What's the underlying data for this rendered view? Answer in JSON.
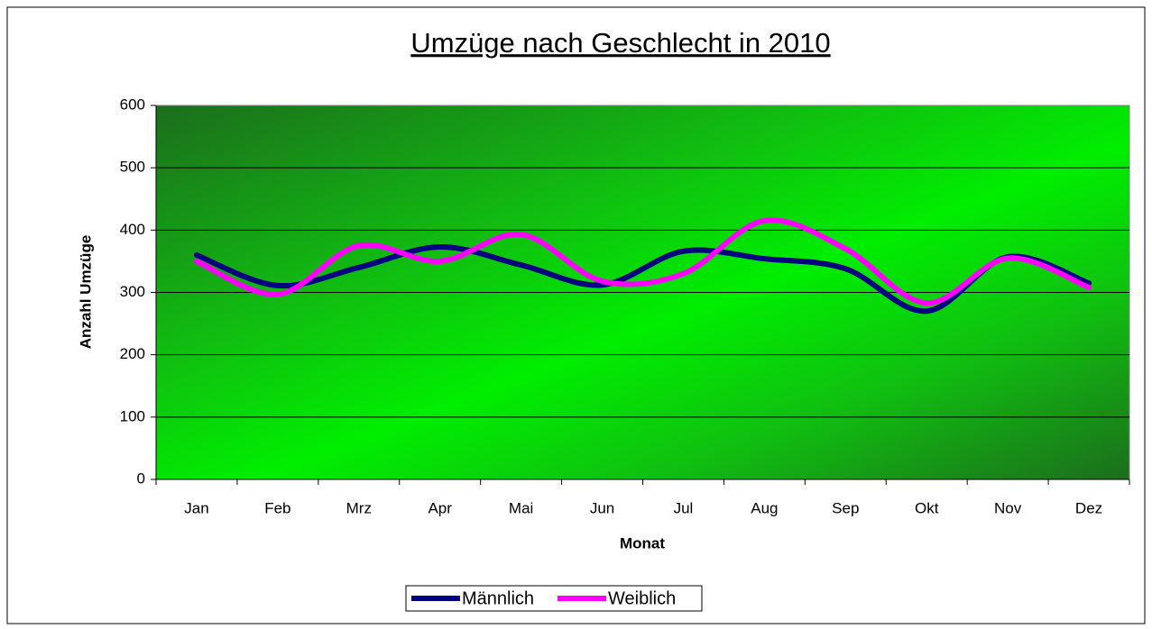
{
  "chart_data": {
    "type": "line",
    "title": "Umzüge nach Geschlecht in 2010",
    "x_label": "Monat",
    "y_label": "Anzahl Umzüge",
    "categories": [
      "Jan",
      "Feb",
      "Mrz",
      "Apr",
      "Mai",
      "Jun",
      "Jul",
      "Aug",
      "Sep",
      "Okt",
      "Nov",
      "Dez"
    ],
    "series": [
      {
        "name": "Männlich",
        "color": "#000080",
        "values": [
          360,
          311,
          340,
          373,
          344,
          312,
          366,
          354,
          338,
          270,
          357,
          315
        ]
      },
      {
        "name": "Weiblich",
        "color": "#ff00ff",
        "values": [
          350,
          297,
          375,
          350,
          393,
          318,
          330,
          415,
          370,
          283,
          355,
          308
        ]
      }
    ],
    "ylim": [
      0,
      600
    ],
    "yticks": [
      0,
      100,
      200,
      300,
      400,
      500,
      600
    ],
    "grid": true,
    "smooth": true,
    "legend": "bottom"
  }
}
